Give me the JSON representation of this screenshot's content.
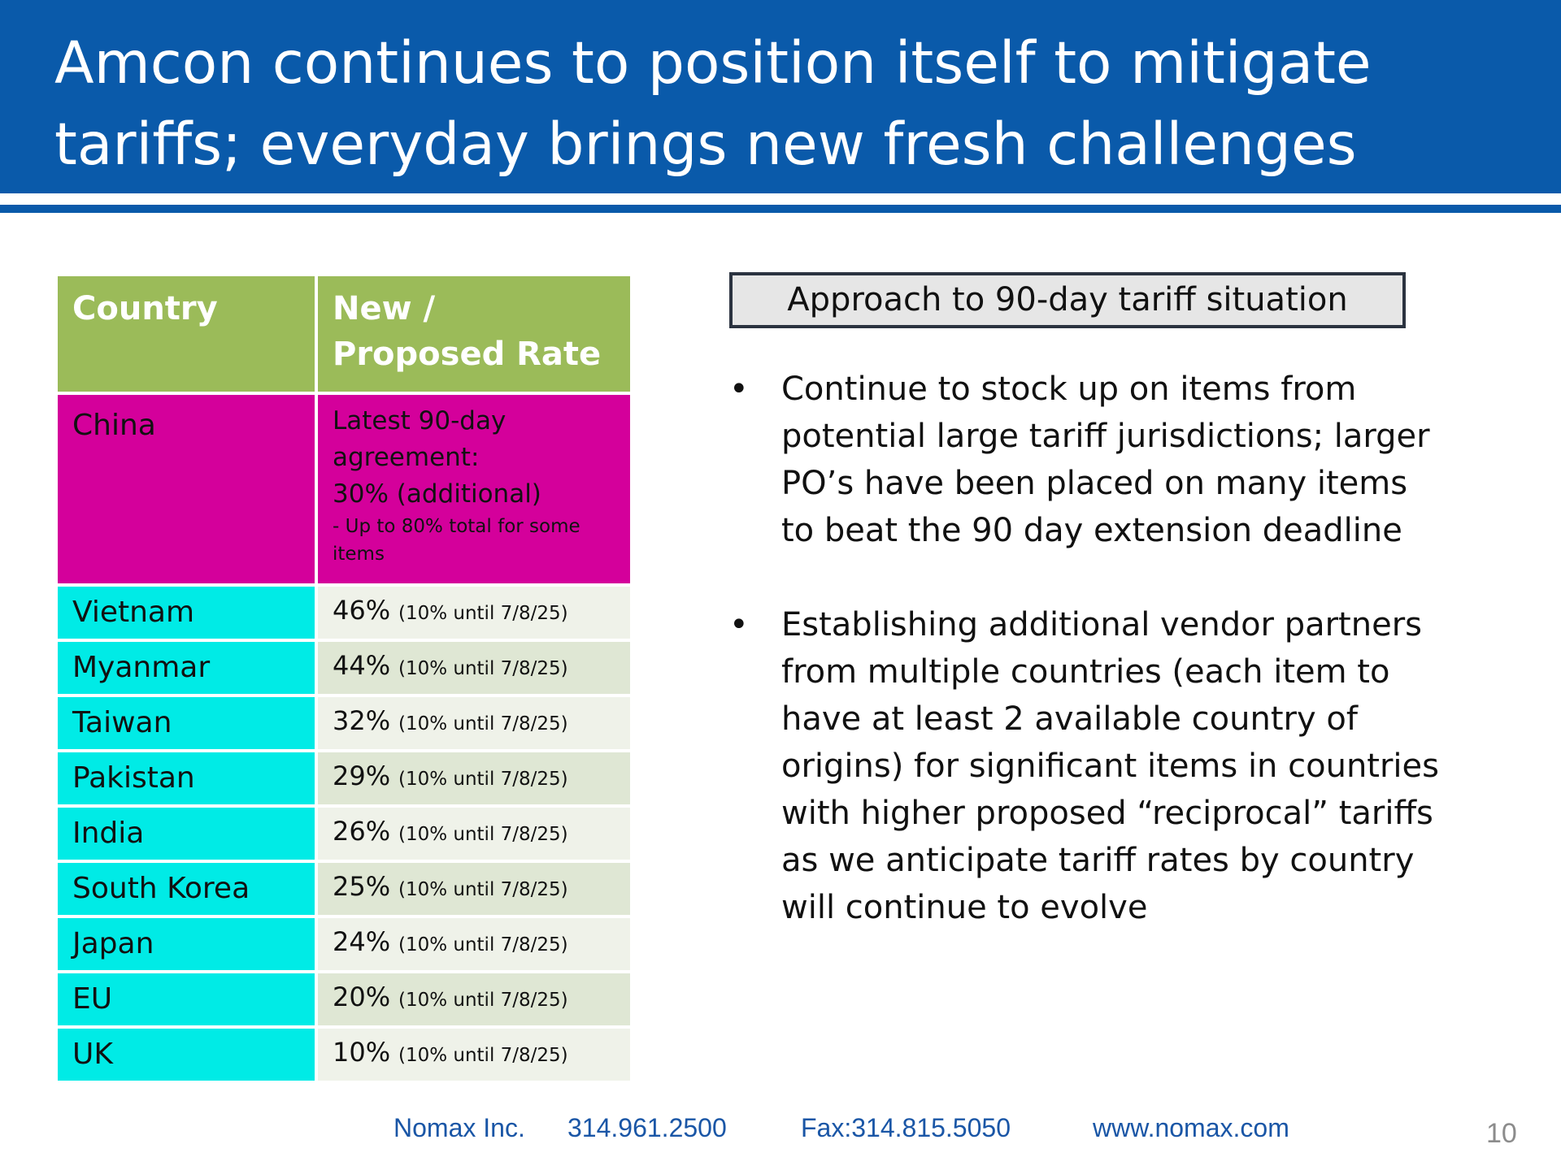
{
  "header": {
    "title": "Amcon continues to position itself to mitigate tariffs; everyday brings new fresh challenges"
  },
  "table": {
    "headers": [
      "Country",
      "New / Proposed Rate"
    ],
    "china": {
      "country": "China",
      "rate_line1": "Latest 90-day agreement:",
      "rate_line2": "30% (additional)",
      "rate_note": "- Up to 80% total for some items"
    },
    "rows": [
      {
        "country": "Vietnam",
        "rate": "46%",
        "note": "(10% until 7/8/25)"
      },
      {
        "country": "Myanmar",
        "rate": "44%",
        "note": "(10% until 7/8/25)"
      },
      {
        "country": "Taiwan",
        "rate": "32%",
        "note": "(10% until 7/8/25)"
      },
      {
        "country": "Pakistan",
        "rate": "29%",
        "note": "(10% until 7/8/25)"
      },
      {
        "country": "India",
        "rate": "26%",
        "note": "(10% until 7/8/25)"
      },
      {
        "country": "South Korea",
        "rate": "25%",
        "note": "(10% until 7/8/25)"
      },
      {
        "country": "Japan",
        "rate": "24%",
        "note": "(10% until 7/8/25)"
      },
      {
        "country": "EU",
        "rate": "20%",
        "note": "(10% until 7/8/25)"
      },
      {
        "country": "UK",
        "rate": "10%",
        "note": "(10% until 7/8/25)"
      }
    ]
  },
  "approach": {
    "title": "Approach to 90-day tariff situation",
    "bullet_glyph": "•",
    "bullets": [
      "Continue to stock up on items from potential large tariff jurisdictions; larger PO’s have been placed on many items to beat the 90 day extension deadline",
      "Establishing additional vendor partners from multiple countries (each item to have at least 2 available country of origins) for significant items in countries with higher proposed “reciprocal” tariffs as we anticipate tariff rates by country will continue to evolve"
    ]
  },
  "footer": {
    "company": "Nomax Inc.",
    "phone": "314.961.2500",
    "fax": "Fax:314.815.5050",
    "website": "www.nomax.com"
  },
  "page_number": "10",
  "colors": {
    "header_blue": "#0a5aaa",
    "table_header_green": "#9bbb59",
    "china_magenta": "#d4009b",
    "country_cyan": "#00ebe6"
  }
}
